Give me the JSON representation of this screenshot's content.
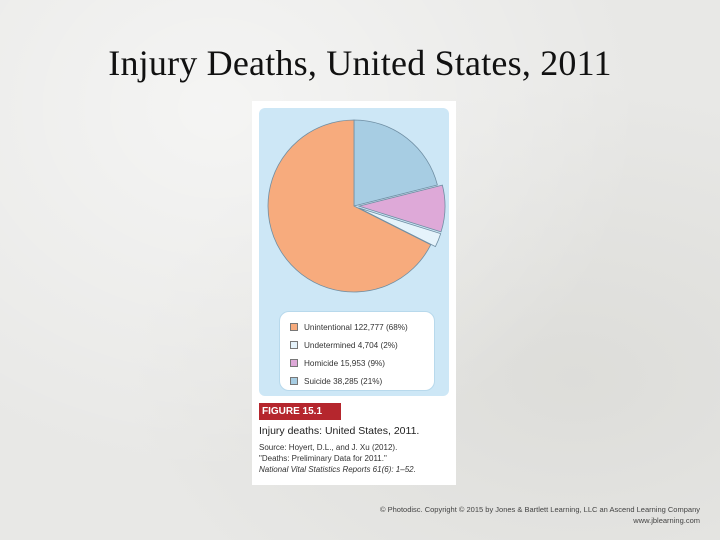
{
  "slide": {
    "title": "Injury Deaths, United States, 2011"
  },
  "chart_data": {
    "type": "pie",
    "slices": [
      {
        "label": "Unintentional 122,777 (68%)",
        "value": 122777,
        "color": "#f7ab7d"
      },
      {
        "label": "Undetermined 4,704 (2%)",
        "value": 4704,
        "color": "#e5f3fb"
      },
      {
        "label": "Homicide 15,953 (9%)",
        "value": 15953,
        "color": "#dea9d8"
      },
      {
        "label": "Suicide 38,285 (21%)",
        "value": 38285,
        "color": "#a7cde3"
      }
    ],
    "legend": "bottom"
  },
  "figure": {
    "label": "FIGURE 15.1",
    "caption": "Injury deaths: United States, 2011.",
    "source_line1": "Source: Hoyert, D.L., and J. Xu (2012).",
    "source_line2": "\"Deaths: Preliminary Data for 2011.\"",
    "source_line3": "National Vital Statistics Reports 61(6): 1–52."
  },
  "credit": {
    "line1": "© Photodisc. Copyright © 2015 by Jones & Bartlett Learning, LLC an Ascend Learning Company",
    "line2": "www.jblearning.com"
  }
}
